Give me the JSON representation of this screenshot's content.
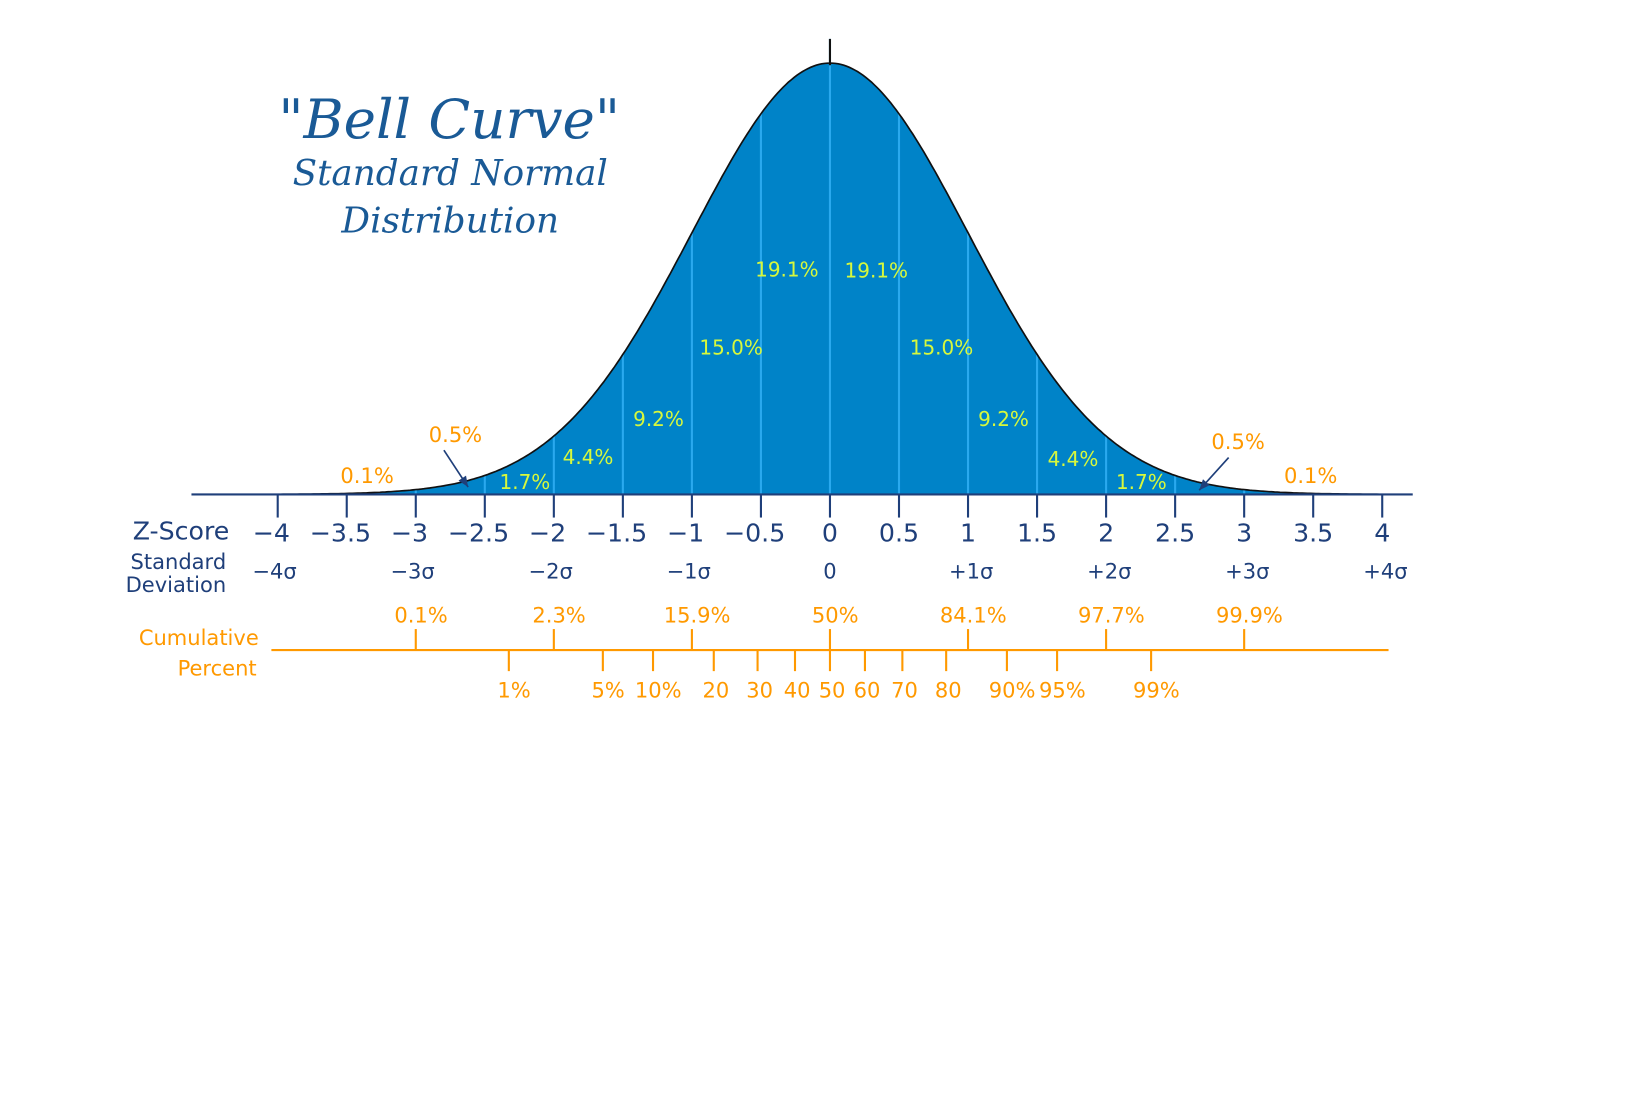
{
  "chart_data": {
    "type": "area",
    "title": "\"Bell Curve\"",
    "subtitle": [
      "Standard Normal",
      "Distribution"
    ],
    "distribution": {
      "mean": 0,
      "sd": 1
    },
    "xlim": [
      -4,
      4
    ],
    "colors": {
      "fill": "#0083c8",
      "divider": "#2aa9ee",
      "axis": "#1f3f7a",
      "segment_label": "#d7f83c",
      "cumulative": "#ff9900",
      "title": "#1a5a96"
    },
    "z_score": {
      "label": "Z-Score",
      "ticks": [
        -4,
        -3.5,
        -3,
        -2.5,
        -2,
        -1.5,
        -1,
        -0.5,
        0,
        0.5,
        1,
        1.5,
        2,
        2.5,
        3,
        3.5,
        4
      ],
      "tick_labels": [
        "−4",
        "−3.5",
        "−3",
        "−2.5",
        "−2",
        "−1.5",
        "−1",
        "−0.5",
        "0",
        "0.5",
        "1",
        "1.5",
        "2",
        "2.5",
        "3",
        "3.5",
        "4"
      ]
    },
    "standard_deviation": {
      "label": [
        "Standard",
        "Deviation"
      ],
      "ticks": [
        -4,
        -3,
        -2,
        -1,
        0,
        1,
        2,
        3,
        4
      ],
      "tick_labels": [
        "−4σ",
        "−3σ",
        "−2σ",
        "−1σ",
        "0",
        "+1σ",
        "+2σ",
        "+3σ",
        "+4σ"
      ]
    },
    "segments": [
      {
        "from": -0.5,
        "to": 0,
        "label": "19.1%"
      },
      {
        "from": 0,
        "to": 0.5,
        "label": "19.1%"
      },
      {
        "from": -1,
        "to": -0.5,
        "label": "15.0%"
      },
      {
        "from": 0.5,
        "to": 1,
        "label": "15.0%"
      },
      {
        "from": -1.5,
        "to": -1,
        "label": "9.2%"
      },
      {
        "from": 1,
        "to": 1.5,
        "label": "9.2%"
      },
      {
        "from": -2,
        "to": -1.5,
        "label": "4.4%"
      },
      {
        "from": 1.5,
        "to": 2,
        "label": "4.4%"
      },
      {
        "from": -2.5,
        "to": -2,
        "label": "1.7%"
      },
      {
        "from": 2,
        "to": 2.5,
        "label": "1.7%"
      }
    ],
    "tail_labels": [
      {
        "from": -3,
        "to": -2.5,
        "label": "0.5%"
      },
      {
        "from": 2.5,
        "to": 3,
        "label": "0.5%"
      },
      {
        "from": -4,
        "to": -3,
        "label": "0.1%"
      },
      {
        "from": 3,
        "to": 4,
        "label": "0.1%"
      }
    ],
    "cumulative": {
      "label": [
        "Cumulative",
        "Percent"
      ],
      "upper": [
        {
          "z": -3,
          "label": "0.1%"
        },
        {
          "z": -2,
          "label": "2.3%"
        },
        {
          "z": -1,
          "label": "15.9%"
        },
        {
          "z": 0,
          "label": "50%"
        },
        {
          "z": 1,
          "label": "84.1%"
        },
        {
          "z": 2,
          "label": "97.7%"
        },
        {
          "z": 3,
          "label": "99.9%"
        }
      ],
      "percentiles": [
        {
          "z": -2.326,
          "label": "1%"
        },
        {
          "z": -1.645,
          "label": "5%"
        },
        {
          "z": -1.2816,
          "label": "10%"
        },
        {
          "z": -0.8416,
          "label": "20"
        },
        {
          "z": -0.5244,
          "label": "30"
        },
        {
          "z": -0.2533,
          "label": "40"
        },
        {
          "z": 0,
          "label": "50"
        },
        {
          "z": 0.2533,
          "label": "60"
        },
        {
          "z": 0.5244,
          "label": "70"
        },
        {
          "z": 0.8416,
          "label": "80"
        },
        {
          "z": 1.2816,
          "label": "90%"
        },
        {
          "z": 1.645,
          "label": "95%"
        },
        {
          "z": 2.326,
          "label": "99%"
        }
      ]
    }
  }
}
